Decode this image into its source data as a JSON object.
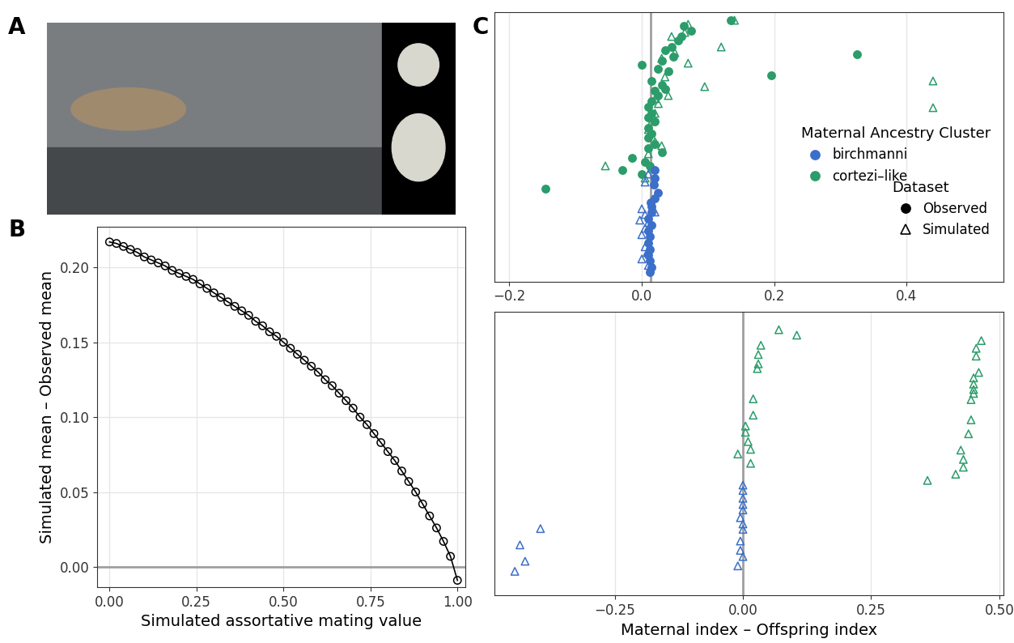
{
  "chart_data": [
    {
      "type": "image",
      "title": "A"
    },
    {
      "type": "line",
      "title": "B",
      "x_label": "Simulated assortative mating value",
      "y_label": "Simulated mean – Observed mean",
      "xlim": [
        -0.035,
        1.023
      ],
      "ylim": [
        -0.0135,
        0.227
      ],
      "xticks": [
        {
          "value": 0,
          "label": "0.00"
        },
        {
          "value": 0.25,
          "label": "0.25"
        },
        {
          "value": 0.5,
          "label": "0.50"
        },
        {
          "value": 0.75,
          "label": "0.75"
        },
        {
          "value": 1,
          "label": "1.00"
        }
      ],
      "yticks": [
        {
          "value": 0,
          "label": "0.00"
        },
        {
          "value": 0.05,
          "label": "0.05"
        },
        {
          "value": 0.1,
          "label": "0.10"
        },
        {
          "value": 0.15,
          "label": "0.15"
        },
        {
          "value": 0.2,
          "label": "0.20"
        }
      ],
      "grid": true,
      "hline": 0,
      "series": [
        {
          "color": "#000000",
          "marker": "open_circle",
          "x": [
            0.0,
            0.02,
            0.04,
            0.06,
            0.08,
            0.1,
            0.12,
            0.14,
            0.16,
            0.18,
            0.2,
            0.22,
            0.24,
            0.26,
            0.28,
            0.3,
            0.32,
            0.34,
            0.36,
            0.38,
            0.4,
            0.42,
            0.44,
            0.46,
            0.48,
            0.5,
            0.52,
            0.54,
            0.56,
            0.58,
            0.6,
            0.62,
            0.64,
            0.66,
            0.68,
            0.7,
            0.72,
            0.74,
            0.76,
            0.78,
            0.8,
            0.82,
            0.84,
            0.86,
            0.88,
            0.9,
            0.92,
            0.94,
            0.96,
            0.98,
            1.0
          ],
          "values": [
            0.217,
            0.216,
            0.214,
            0.212,
            0.21,
            0.207,
            0.205,
            0.203,
            0.201,
            0.198,
            0.196,
            0.194,
            0.192,
            0.189,
            0.186,
            0.183,
            0.18,
            0.177,
            0.174,
            0.171,
            0.168,
            0.164,
            0.161,
            0.157,
            0.154,
            0.15,
            0.146,
            0.142,
            0.138,
            0.134,
            0.13,
            0.125,
            0.121,
            0.116,
            0.111,
            0.106,
            0.1,
            0.095,
            0.089,
            0.083,
            0.077,
            0.071,
            0.064,
            0.057,
            0.05,
            0.042,
            0.034,
            0.026,
            0.017,
            0.007,
            -0.009
          ]
        }
      ]
    },
    {
      "type": "scatter",
      "title": "C",
      "tick_labels": "x",
      "xlim": [
        -0.222,
        0.547
      ],
      "ylim": [
        -8,
        325
      ],
      "xticks": [
        {
          "value": -0.2,
          "label": "−0.2"
        },
        {
          "value": 0.0,
          "label": "0.0"
        },
        {
          "value": 0.2,
          "label": "0.2"
        },
        {
          "value": 0.4,
          "label": "0.4"
        }
      ],
      "grid": true,
      "vline": 0.0136,
      "legend": "center right",
      "legend_groups": [
        {
          "title": "Maternal Ancestry Cluster",
          "entries": [
            {
              "name": "birchmanni",
              "color": "#3b6fc9"
            },
            {
              "name": "cortezi–like",
              "color": "#2b9c6a"
            }
          ]
        },
        {
          "title": "Dataset",
          "entries": [
            {
              "name": "Observed",
              "marker": "filled_circle"
            },
            {
              "name": "Simulated",
              "marker": "open_triangle"
            }
          ]
        }
      ],
      "series": [
        {
          "color": "#2b9c6a",
          "marker": "filled_circle",
          "x": [
            0.135,
            0.075,
            0.063,
            0.06,
            0.055,
            0.045,
            0.035,
            0.048,
            0.03,
            0.325,
            0.04,
            0.0,
            0.025,
            0.195,
            0.015,
            0.03,
            0.02,
            0.035,
            0.025,
            0.015,
            0.01,
            0.015,
            0.01,
            0.02,
            0.01,
            0.015,
            0.01,
            0.02,
            0.01,
            -0.015,
            -0.03,
            0.005,
            0.0,
            -0.145,
            0.012,
            0.03
          ],
          "values": [
            315,
            302,
            308,
            295,
            290,
            282,
            278,
            270,
            265,
            273,
            252,
            260,
            255,
            247,
            240,
            235,
            228,
            230,
            222,
            215,
            208,
            200,
            195,
            190,
            182,
            175,
            170,
            162,
            157,
            145,
            130,
            140,
            125,
            107,
            135,
            152
          ]
        },
        {
          "color": "#2b9c6a",
          "marker": "open_triangle",
          "x": [
            0.14,
            0.07,
            0.065,
            0.045,
            0.12,
            0.05,
            0.07,
            0.03,
            0.44,
            0.44,
            0.095,
            0.035,
            0.02,
            0.04,
            0.015,
            0.01,
            0.02,
            0.01,
            -0.055,
            0.005,
            0.015,
            0.03,
            0.02,
            0.025
          ],
          "values": [
            315,
            310,
            300,
            295,
            282,
            275,
            262,
            268,
            240,
            207,
            233,
            245,
            218,
            222,
            190,
            180,
            165,
            150,
            135,
            120,
            132,
            160,
            200,
            212
          ]
        },
        {
          "color": "#3b6fc9",
          "marker": "filled_circle",
          "x": [
            0.02,
            0.025,
            0.02,
            0.015,
            0.015,
            0.01,
            0.015,
            0.01,
            0.012,
            0.01,
            0.012,
            0.01,
            0.012,
            0.015,
            0.012,
            0.018,
            0.02,
            0.013
          ],
          "values": [
            130,
            102,
            95,
            85,
            78,
            70,
            62,
            55,
            48,
            40,
            32,
            25,
            18,
            10,
            4,
            112,
            120,
            90
          ]
        },
        {
          "color": "#3b6fc9",
          "marker": "open_triangle",
          "x": [
            0.005,
            0.01,
            0.0,
            0.005,
            0.02,
            0.01,
            0.005,
            0.0,
            0.01,
            0.005,
            0.008,
            0.0,
            0.01,
            -0.003
          ],
          "values": [
            115,
            125,
            82,
            75,
            78,
            65,
            58,
            50,
            43,
            35,
            28,
            20,
            12,
            68
          ]
        }
      ]
    },
    {
      "type": "scatter",
      "tick_labels": "x",
      "x_label": "Maternal index – Offspring index",
      "xlim": [
        -0.484,
        0.509
      ],
      "ylim": [
        0,
        365
      ],
      "xticks": [
        {
          "value": -0.25,
          "label": "−0.25"
        },
        {
          "value": 0.0,
          "label": "0.00"
        },
        {
          "value": 0.25,
          "label": "0.25"
        },
        {
          "value": 0.5,
          "label": "0.50"
        }
      ],
      "grid": true,
      "vline": 0.0,
      "series": [
        {
          "color": "#2b9c6a",
          "marker": "open_triangle",
          "x": [
            0.07,
            0.105,
            0.035,
            0.03,
            0.03,
            0.028,
            0.465,
            0.455,
            0.455,
            0.46,
            0.45,
            0.45,
            0.45,
            0.45,
            0.445,
            0.445,
            0.44,
            0.425,
            0.43,
            0.43,
            0.415,
            0.36,
            0.02,
            0.02,
            0.005,
            0.005,
            0.01,
            0.015,
            -0.01,
            0.015
          ],
          "values": [
            342,
            335,
            322,
            310,
            298,
            292,
            328,
            318,
            308,
            287,
            280,
            272,
            265,
            260,
            252,
            226,
            208,
            187,
            175,
            165,
            156,
            148,
            253,
            232,
            218,
            210,
            198,
            188,
            182,
            170
          ]
        },
        {
          "color": "#3b6fc9",
          "marker": "open_triangle",
          "x": [
            -0.395,
            -0.435,
            -0.425,
            -0.445,
            0.0,
            0.0,
            0.0,
            0.0,
            0.0,
            -0.005,
            0.0,
            0.0,
            -0.005,
            0.0,
            -0.01,
            -0.005
          ],
          "values": [
            86,
            65,
            44,
            31,
            142,
            135,
            125,
            117,
            110,
            100,
            92,
            85,
            58,
            50,
            38,
            70
          ]
        }
      ]
    }
  ]
}
